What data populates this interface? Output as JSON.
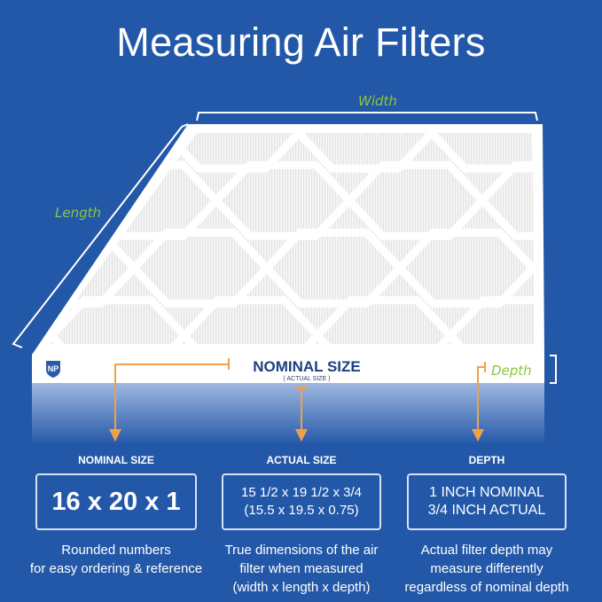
{
  "title": "Measuring Air Filters",
  "labels": {
    "width": "Width",
    "length": "Length",
    "depth": "Depth"
  },
  "band": {
    "nominal": "NOMINAL SIZE",
    "actual": "( ACTUAL SIZE )",
    "logo": "NP"
  },
  "columns": [
    {
      "heading": "NOMINAL SIZE",
      "value_lines": [
        "16 x 20 x 1"
      ],
      "description": [
        "Rounded numbers",
        "for easy ordering & reference"
      ]
    },
    {
      "heading": "ACTUAL SIZE",
      "value_lines": [
        "15 1/2 x 19 1/2 x 3/4",
        "(15.5 x 19.5 x 0.75)"
      ],
      "description": [
        "True dimensions of the air",
        "filter when measured",
        "(width x length x depth)"
      ]
    },
    {
      "heading": "DEPTH",
      "value_lines": [
        "1 INCH NOMINAL",
        "3/4 INCH ACTUAL"
      ],
      "description": [
        "Actual filter depth may",
        "measure differently",
        "regardless of nominal depth"
      ]
    }
  ],
  "colors": {
    "background": "#2358a8",
    "arrow": "#f0a04b",
    "label": "#8cc63f",
    "band_text": "#1d3f7f"
  }
}
